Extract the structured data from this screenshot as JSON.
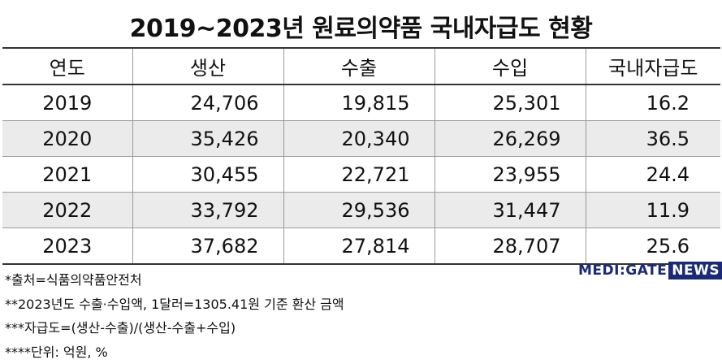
{
  "title": "2019~2023년 원료의약품 국내자급도 현황",
  "table": {
    "headers": [
      "연도",
      "생산",
      "수출",
      "수입",
      "국내자급도"
    ],
    "rows": [
      {
        "year": "2019",
        "production": "24,706",
        "export": "19,815",
        "import": "25,301",
        "self_sufficiency": "16.2"
      },
      {
        "year": "2020",
        "production": "35,426",
        "export": "20,340",
        "import": "26,269",
        "self_sufficiency": "36.5"
      },
      {
        "year": "2021",
        "production": "30,455",
        "export": "22,721",
        "import": "23,955",
        "self_sufficiency": "24.4"
      },
      {
        "year": "2022",
        "production": "33,792",
        "export": "29,536",
        "import": "31,447",
        "self_sufficiency": "11.9"
      },
      {
        "year": "2023",
        "production": "37,682",
        "export": "27,814",
        "import": "28,707",
        "self_sufficiency": "25.6"
      }
    ]
  },
  "notes": [
    "*출처=식품의약품안전처",
    "**2023년도 수출·수입액, 1달러=1305.41원 기준 환산 금액",
    "***자급도=(생산-수출)/(생산-수출+수입)",
    "****단위: 억원, %"
  ],
  "logo": {
    "brand": "MEDI:GATE",
    "news": "NEWS",
    "color": "#1a2a78"
  }
}
